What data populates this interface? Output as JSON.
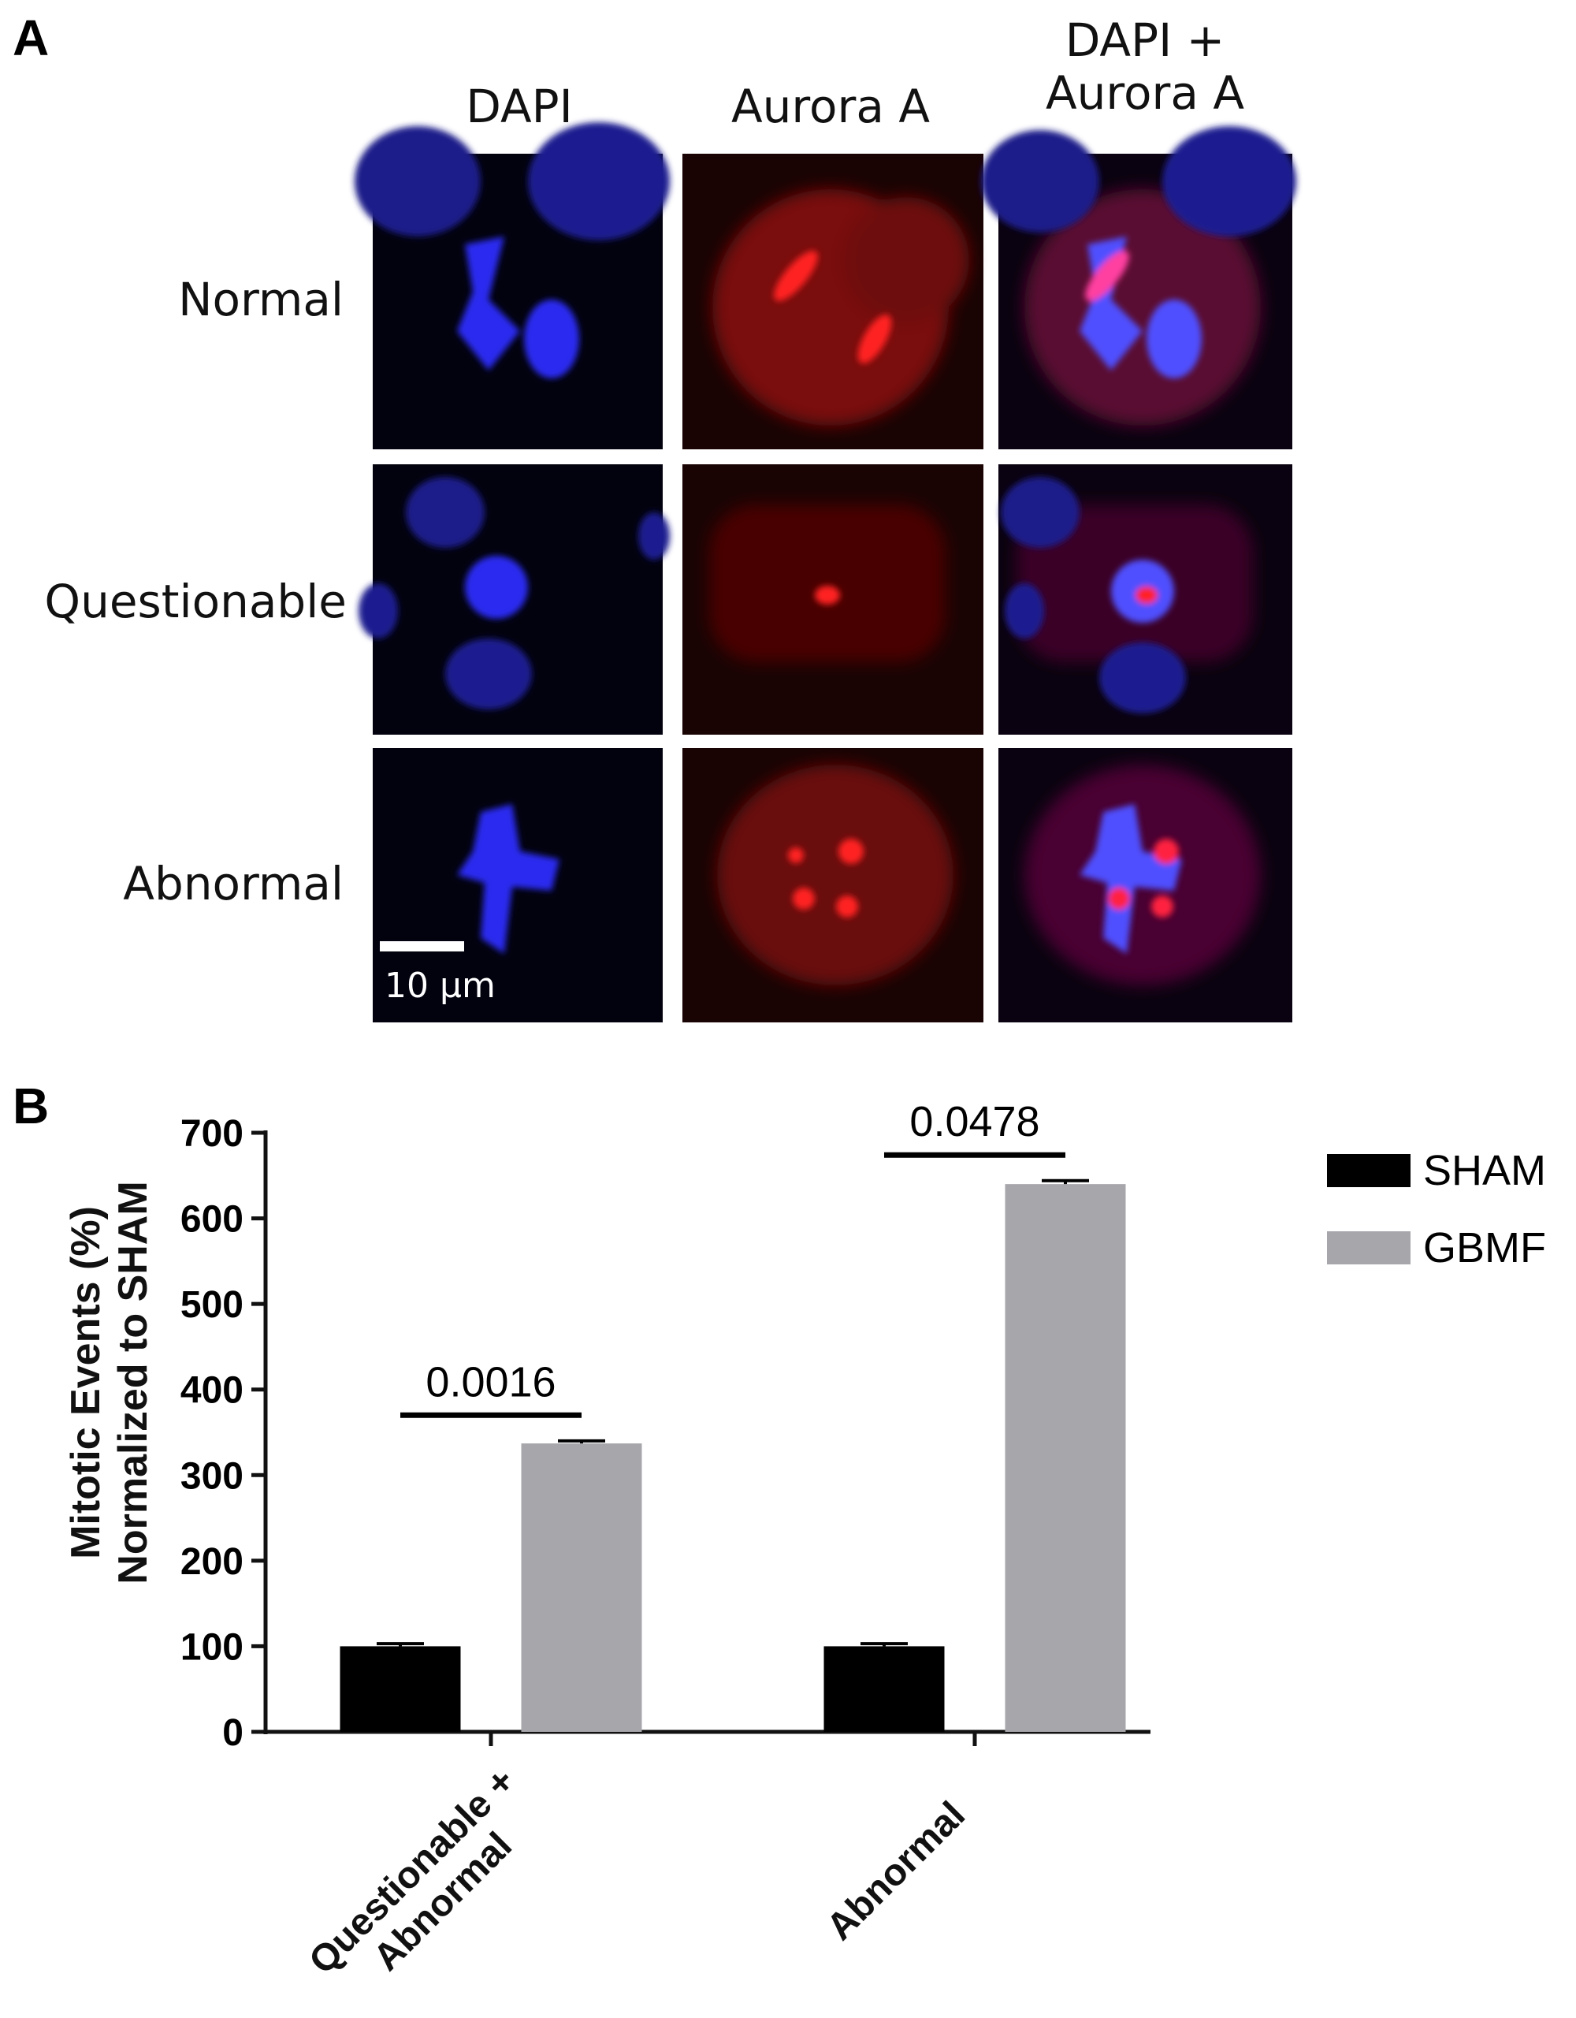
{
  "panel_a": {
    "label": "A",
    "columns": [
      "DAPI",
      "Aurora A",
      "DAPI + Aurora A"
    ],
    "rows": [
      "Normal",
      "Questionable",
      "Abnormal"
    ],
    "scale_bar": "10 µm"
  },
  "panel_b": {
    "label": "B"
  },
  "chart_data": {
    "type": "bar",
    "ylabel": "Mitotic Events (%) Normalized to SHAM",
    "categories": [
      "Questionable + Abnormal",
      "Abnormal"
    ],
    "series": [
      {
        "name": "SHAM",
        "color": "#000000",
        "values": [
          100,
          100
        ],
        "errors": [
          3,
          3
        ]
      },
      {
        "name": "GBMF",
        "color": "#a7a6ab",
        "values": [
          337,
          640
        ],
        "errors": [
          3,
          4
        ]
      }
    ],
    "annotations": [
      "0.0016",
      "0.0478"
    ],
    "ylim": [
      0,
      700
    ],
    "yticks": [
      0,
      100,
      200,
      300,
      400,
      500,
      600,
      700
    ],
    "legend": "right"
  }
}
